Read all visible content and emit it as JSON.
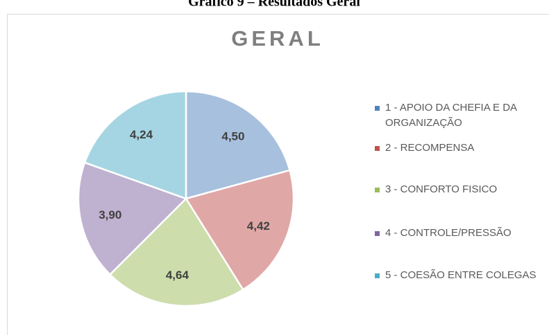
{
  "caption": "Gráfico 9 – Resultados Geral",
  "chart_data": {
    "type": "pie",
    "title": "GERAL",
    "categories": [
      "1 - APOIO DA CHEFIA E DA ORGANIZAÇÃO",
      "2 - RECOMPENSA",
      "3 - CONFORTO FISICO",
      "4 - CONTROLE/PRESSÃO",
      "5 - COESÃO ENTRE COLEGAS"
    ],
    "values": [
      4.5,
      4.42,
      4.64,
      3.9,
      4.24
    ],
    "value_labels": [
      "4,50",
      "4,42",
      "4,64",
      "3,90",
      "4,24"
    ],
    "colors": [
      "#4f81bd",
      "#c0504d",
      "#9bbb59",
      "#8064a2",
      "#4bacc6"
    ],
    "legend": "right"
  }
}
